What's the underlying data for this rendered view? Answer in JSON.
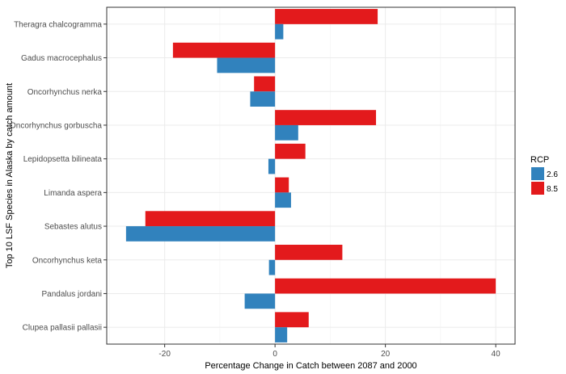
{
  "chart_data": {
    "type": "bar",
    "orientation": "horizontal",
    "categories": [
      "Theragra chalcogramma",
      "Gadus macrocephalus",
      "Oncorhynchus nerka",
      "Oncorhynchus gorbuscha",
      "Lepidopsetta bilineata",
      "Limanda aspera",
      "Sebastes alutus",
      "Oncorhynchus keta",
      "Pandalus jordani",
      "Clupea pallasii pallasii"
    ],
    "series": [
      {
        "name": "2.6",
        "color": "#3182bd",
        "values": [
          1.5,
          -10.5,
          -4.5,
          4.2,
          -1.2,
          2.9,
          -27,
          -1.1,
          -5.5,
          2.2
        ]
      },
      {
        "name": "8.5",
        "color": "#e31a1c",
        "values": [
          18.6,
          -18.5,
          -3.8,
          18.3,
          5.5,
          2.5,
          -23.5,
          12.2,
          40,
          6.1
        ]
      }
    ],
    "title": "",
    "xlabel": "Percentage Change in Catch between 2087 and 2000",
    "ylabel": "Top 10 LSF Species in Alaska by catch amount",
    "xlim": [
      -30.5,
      43.5
    ],
    "xticks": [
      -20,
      0,
      20,
      40
    ],
    "grid": true,
    "legend": {
      "title": "RCP",
      "position": "right"
    }
  }
}
